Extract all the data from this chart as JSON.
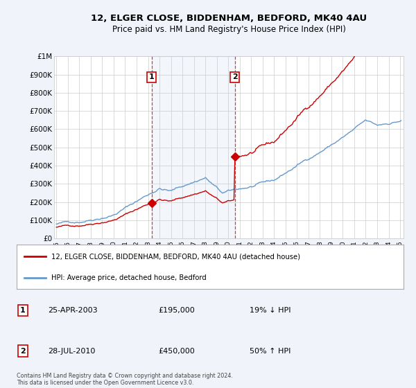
{
  "title": "12, ELGER CLOSE, BIDDENHAM, BEDFORD, MK40 4AU",
  "subtitle": "Price paid vs. HM Land Registry's House Price Index (HPI)",
  "bg_color": "#f0f4fa",
  "plot_bg_color": "#ffffff",
  "xmin": 1994.8,
  "xmax": 2025.3,
  "ymin": 0,
  "ymax": 1000000,
  "yticks": [
    0,
    100000,
    200000,
    300000,
    400000,
    500000,
    600000,
    700000,
    800000,
    900000,
    1000000
  ],
  "ytick_labels": [
    "£0",
    "£100K",
    "£200K",
    "£300K",
    "£400K",
    "£500K",
    "£600K",
    "£700K",
    "£800K",
    "£900K",
    "£1M"
  ],
  "xticks": [
    1995,
    1996,
    1997,
    1998,
    1999,
    2000,
    2001,
    2002,
    2003,
    2004,
    2005,
    2006,
    2007,
    2008,
    2009,
    2010,
    2011,
    2012,
    2013,
    2014,
    2015,
    2016,
    2017,
    2018,
    2019,
    2020,
    2021,
    2022,
    2023,
    2024,
    2025
  ],
  "hpi_color": "#6699cc",
  "price_color": "#cc0000",
  "sale1_x": 2003.32,
  "sale1_y": 195000,
  "sale1_label": "1",
  "sale1_date": "25-APR-2003",
  "sale1_price": "£195,000",
  "sale1_pct": "19% ↓ HPI",
  "sale2_x": 2010.58,
  "sale2_y": 450000,
  "sale2_label": "2",
  "sale2_date": "28-JUL-2010",
  "sale2_price": "£450,000",
  "sale2_pct": "50% ↑ HPI",
  "vline1_x": 2003.32,
  "vline2_x": 2010.58,
  "legend_label1": "12, ELGER CLOSE, BIDDENHAM, BEDFORD, MK40 4AU (detached house)",
  "legend_label2": "HPI: Average price, detached house, Bedford",
  "footer": "Contains HM Land Registry data © Crown copyright and database right 2024.\nThis data is licensed under the Open Government Licence v3.0."
}
